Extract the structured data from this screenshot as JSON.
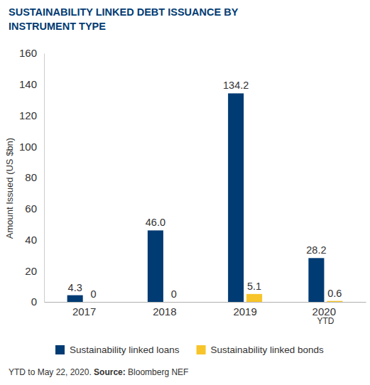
{
  "chart_data": {
    "type": "bar",
    "title": "SUSTAINABILITY LINKED DEBT ISSUANCE BY INSTRUMENT TYPE",
    "y_label": "Amount Issued (US $bn)",
    "categories": [
      "2017",
      "2018",
      "2019",
      "2020 YTD"
    ],
    "series": [
      {
        "name": "Sustainability linked loans",
        "color": "#003b73",
        "values": [
          4.3,
          46.0,
          134.2,
          28.2
        ],
        "value_labels": [
          "4.3",
          "46.0",
          "134.2",
          "28.2"
        ]
      },
      {
        "name": "Sustainability linked bonds",
        "color": "#f7c52a",
        "values": [
          0,
          0,
          5.1,
          0.6
        ],
        "value_labels": [
          "0",
          "0",
          "5.1",
          "0.6"
        ]
      }
    ],
    "ylim": [
      0,
      160
    ],
    "yticks": [
      0,
      20,
      40,
      60,
      80,
      100,
      120,
      140,
      160
    ],
    "grid": false,
    "legend": "bottom",
    "data_labels": true,
    "annotations": [
      "YTD to May 22, 2020.",
      "Source:",
      "Bloomberg NEF"
    ]
  }
}
